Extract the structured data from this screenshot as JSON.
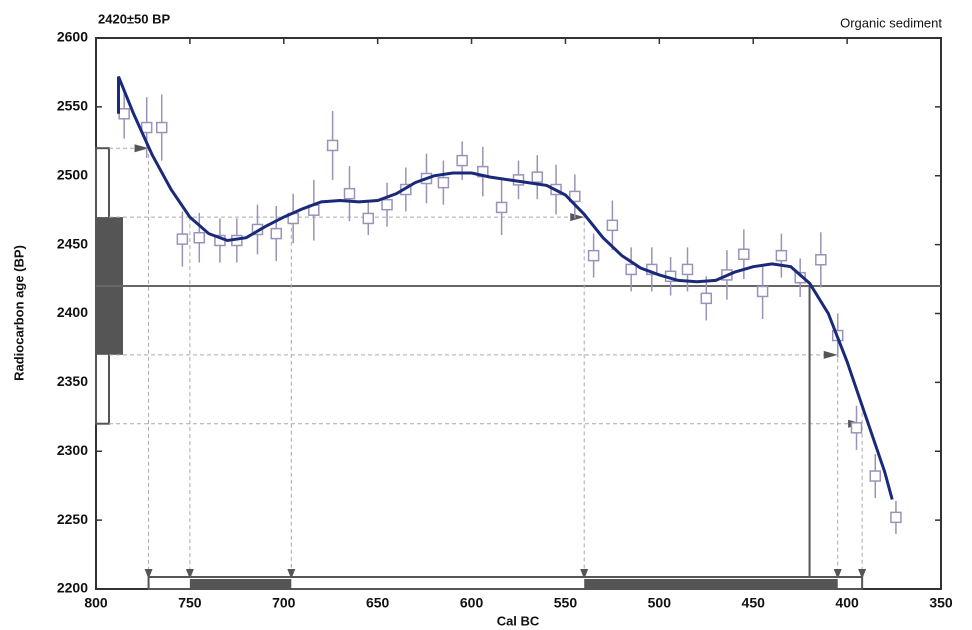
{
  "chart_data": {
    "type": "calibration",
    "title": "2420±50 BP",
    "subtitle": "Organic sediment",
    "x_label": "Cal BC",
    "y_label": "Radiocarbon age (BP)",
    "xlim": [
      800,
      350
    ],
    "ylim": [
      2200,
      2600
    ],
    "xticks": [
      800,
      750,
      700,
      650,
      600,
      550,
      500,
      450,
      400,
      350
    ],
    "yticks": [
      2200,
      2250,
      2300,
      2350,
      2400,
      2450,
      2500,
      2550,
      2600
    ],
    "sample_age": 2420,
    "sigma1": [
      2370,
      2470
    ],
    "sigma2": [
      2320,
      2520
    ],
    "intercept": 420,
    "ranges_1sigma": [
      [
        750,
        696
      ],
      [
        540,
        405
      ]
    ],
    "ranges_2sigma": [
      [
        772,
        392
      ]
    ],
    "points": {
      "color": "#9a93b8",
      "x": [
        785,
        773,
        765,
        754,
        745,
        734,
        725,
        714,
        704,
        695,
        684,
        674,
        665,
        655,
        645,
        635,
        624,
        615,
        605,
        594,
        584,
        575,
        565,
        555,
        545,
        535,
        525,
        515,
        504,
        494,
        485,
        475,
        464,
        455,
        445,
        435,
        425,
        414,
        405,
        395,
        385,
        374
      ],
      "values": [
        2545,
        2535,
        2535,
        2454,
        2455,
        2453,
        2453,
        2461,
        2458,
        2469,
        2475,
        2522,
        2487,
        2469,
        2479,
        2490,
        2498,
        2495,
        2511,
        2503,
        2477,
        2497,
        2499,
        2490,
        2485,
        2442,
        2464,
        2432,
        2432,
        2427,
        2432,
        2411,
        2428,
        2443,
        2416,
        2442,
        2426,
        2439,
        2384,
        2317,
        2282,
        2252
      ],
      "errors": [
        18,
        22,
        24,
        20,
        18,
        16,
        16,
        18,
        20,
        18,
        22,
        25,
        20,
        12,
        16,
        16,
        18,
        16,
        14,
        18,
        20,
        14,
        16,
        18,
        16,
        16,
        18,
        16,
        16,
        14,
        16,
        16,
        18,
        18,
        20,
        16,
        14,
        20,
        16,
        16,
        16,
        12
      ]
    },
    "curve": {
      "color": "#1a2a7a",
      "x": [
        788,
        788,
        780,
        770,
        760,
        750,
        740,
        730,
        720,
        710,
        700,
        690,
        680,
        670,
        660,
        650,
        640,
        630,
        620,
        610,
        600,
        590,
        580,
        570,
        560,
        550,
        540,
        530,
        520,
        510,
        500,
        490,
        480,
        470,
        460,
        450,
        440,
        430,
        420,
        410,
        400,
        390,
        380,
        376
      ],
      "values": [
        2545,
        2572,
        2545,
        2515,
        2490,
        2470,
        2458,
        2453,
        2455,
        2463,
        2470,
        2476,
        2481,
        2482,
        2481,
        2482,
        2487,
        2495,
        2500,
        2502,
        2502,
        2499,
        2497,
        2495,
        2493,
        2486,
        2472,
        2455,
        2442,
        2433,
        2428,
        2424,
        2423,
        2424,
        2430,
        2434,
        2436,
        2434,
        2422,
        2400,
        2365,
        2325,
        2285,
        2265
      ]
    }
  }
}
